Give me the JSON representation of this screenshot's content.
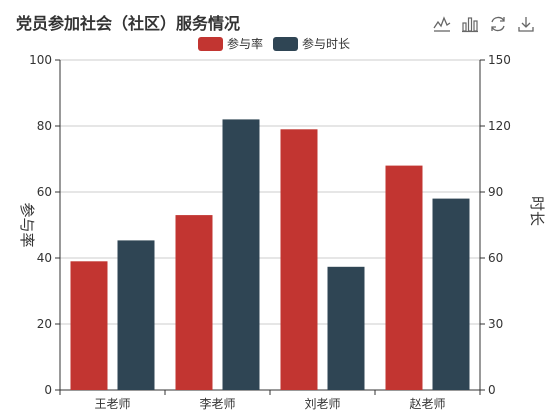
{
  "title": "党员参加社会（社区）服务情况",
  "toolbox": {
    "icons": [
      "line-chart-icon",
      "bar-chart-icon",
      "restore-icon",
      "download-icon"
    ]
  },
  "colors": {
    "participation_rate": "#c23531",
    "duration": "#2f4554",
    "grid": "#cccccc",
    "axis": "#333333"
  },
  "chart_data": {
    "type": "bar",
    "title": "党员参加社会（社区）服务情况",
    "categories": [
      "王老师",
      "李老师",
      "刘老师",
      "赵老师"
    ],
    "series": [
      {
        "name": "参与率",
        "axis": "left",
        "values": [
          39,
          53,
          79,
          68
        ]
      },
      {
        "name": "参与时长",
        "axis": "right",
        "values": [
          68,
          123,
          56,
          87
        ]
      }
    ],
    "y_left": {
      "label": "参与率",
      "min": 0,
      "max": 100,
      "ticks": [
        0,
        20,
        40,
        60,
        80,
        100
      ]
    },
    "y_right": {
      "label": "时长",
      "min": 0,
      "max": 150,
      "ticks": [
        0,
        30,
        60,
        90,
        120,
        150
      ]
    },
    "grid": true,
    "legend_position": "top-center"
  }
}
